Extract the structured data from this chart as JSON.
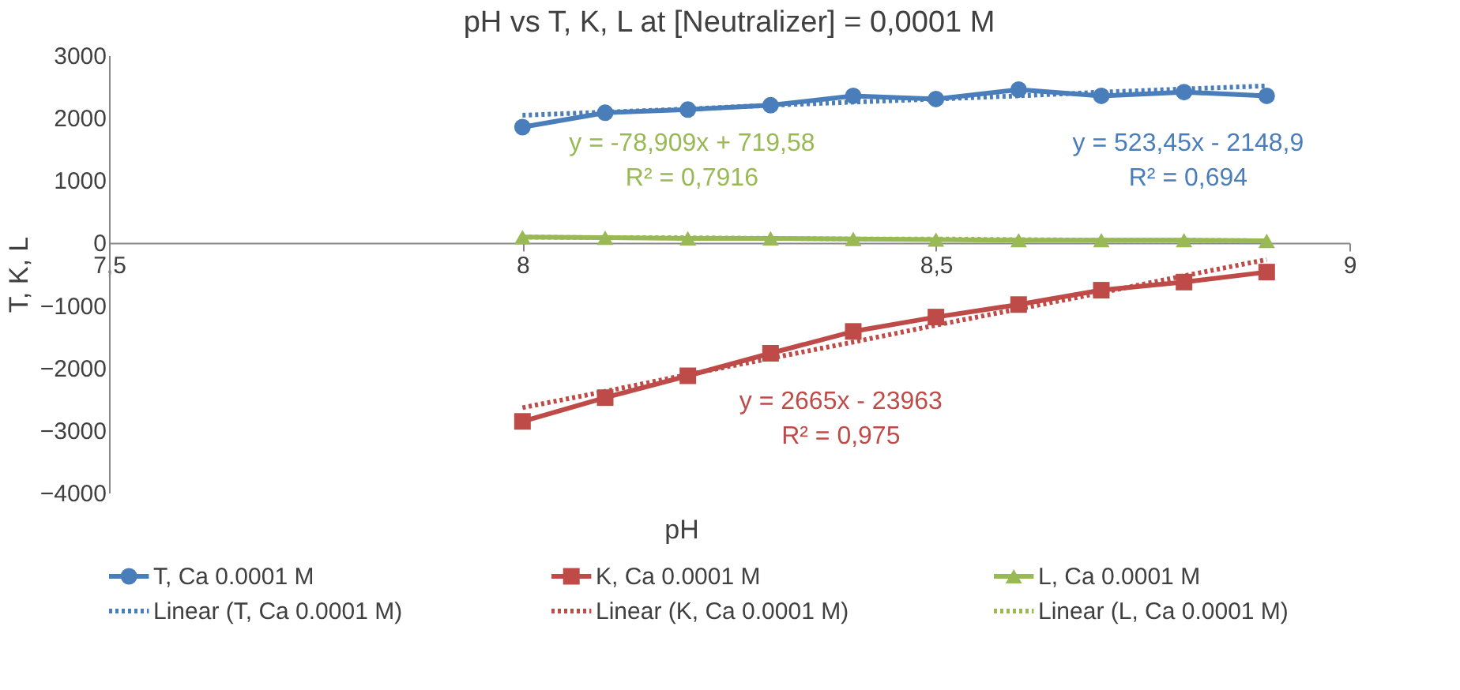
{
  "chart_data": {
    "type": "line",
    "title": "pH vs T, K, L at [Neutralizer] = 0,0001 M",
    "xlabel": "pH",
    "ylabel": "T, K, L",
    "x": [
      8.0,
      8.1,
      8.2,
      8.3,
      8.4,
      8.5,
      8.6,
      8.7,
      8.8,
      8.9
    ],
    "xlim": [
      7.5,
      9
    ],
    "xticks": [
      {
        "value": 7.5,
        "label": "7,5"
      },
      8,
      {
        "value": 8.5,
        "label": "8,5"
      },
      9
    ],
    "ylim": [
      -4000,
      3000
    ],
    "yticks": [
      -4000,
      -3000,
      -2000,
      -1000,
      0,
      1000,
      2000,
      3000
    ],
    "grid": false,
    "legend": "bottom",
    "series": [
      {
        "name": "T, Ca 0.0001 M",
        "color": "#4a7ebb",
        "marker": "circle",
        "line_style": "solid",
        "values": [
          1850,
          2080,
          2130,
          2200,
          2350,
          2300,
          2450,
          2350,
          2410,
          2350
        ]
      },
      {
        "name": "K, Ca 0.0001 M",
        "color": "#be4b48",
        "marker": "square",
        "line_style": "solid",
        "values": [
          -2860,
          -2480,
          -2130,
          -1770,
          -1420,
          -1190,
          -990,
          -760,
          -630,
          -470
        ]
      },
      {
        "name": "L, Ca 0.0001 M",
        "color": "#98b954",
        "marker": "triangle",
        "line_style": "solid",
        "values": [
          90,
          80,
          70,
          70,
          60,
          50,
          40,
          40,
          40,
          30
        ]
      },
      {
        "name": "Linear (T, Ca 0.0001 M)",
        "color": "#4a7ebb",
        "marker": "none",
        "line_style": "dotted",
        "values": [
          2040,
          2090,
          2140,
          2200,
          2250,
          2300,
          2350,
          2410,
          2460,
          2510
        ]
      },
      {
        "name": "Linear (K, Ca 0.0001 M)",
        "color": "#be4b48",
        "marker": "none",
        "line_style": "dotted",
        "values": [
          -2640,
          -2380,
          -2110,
          -1850,
          -1590,
          -1320,
          -1060,
          -800,
          -530,
          -270
        ]
      },
      {
        "name": "Linear (L, Ca 0.0001 M)",
        "color": "#98b954",
        "marker": "none",
        "line_style": "dotted",
        "values": [
          90,
          80,
          80,
          70,
          60,
          60,
          50,
          40,
          40,
          30
        ]
      }
    ],
    "annotations": [
      "y = 523,45x - 2148,9",
      "R² = 0,694",
      "y = 2665x - 23963",
      "R² = 0,975",
      "y = -78,909x + 719,58",
      "R² = 0,7916"
    ]
  }
}
